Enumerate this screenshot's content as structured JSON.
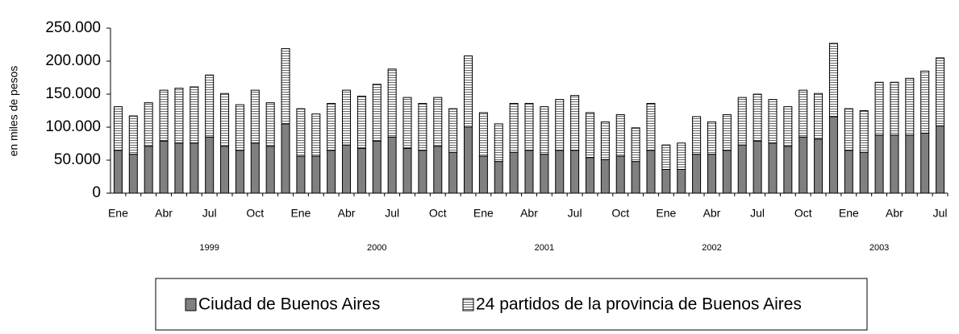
{
  "chart_data": {
    "type": "stacked_bar",
    "y_label": "en  miles de pesos",
    "categories": [
      "Ene",
      null,
      null,
      "Abr",
      null,
      null,
      "Jul",
      null,
      null,
      "Oct",
      null,
      null,
      "Ene",
      null,
      null,
      "Abr",
      null,
      null,
      "Jul",
      null,
      null,
      "Oct",
      null,
      null,
      "Ene",
      null,
      null,
      "Abr",
      null,
      null,
      "Jul",
      null,
      null,
      "Oct",
      null,
      null,
      "Ene",
      null,
      null,
      "Abr",
      null,
      null,
      "Jul",
      null,
      null,
      "Oct",
      null,
      null,
      "Ene",
      null,
      null,
      "Abr",
      null,
      null,
      "Jul"
    ],
    "year_labels": [
      "1999",
      "2000",
      "2001",
      "2002",
      "2003"
    ],
    "series": [
      {
        "name": "Ciudad de Buenos Aires",
        "color": "#808080",
        "values": [
          65000,
          59000,
          71000,
          79000,
          76000,
          76000,
          85000,
          71000,
          65000,
          76000,
          71000,
          105000,
          56000,
          56000,
          65000,
          73000,
          68000,
          79000,
          85000,
          68000,
          65000,
          71000,
          62000,
          100000,
          56000,
          48000,
          62000,
          65000,
          59000,
          65000,
          65000,
          54000,
          51000,
          56000,
          48000,
          65000,
          36000,
          36000,
          59000,
          59000,
          65000,
          73000,
          79000,
          76000,
          71000,
          85000,
          82000,
          116000,
          65000,
          62000,
          88000,
          88000,
          88000,
          91000,
          102000
        ]
      },
      {
        "name": "24 partidos de la provincia de Buenos Aires",
        "color": "#ffffff",
        "hatch": true,
        "values": [
          66000,
          58000,
          66000,
          77000,
          83000,
          85000,
          94000,
          80000,
          69000,
          80000,
          66000,
          114000,
          72000,
          64000,
          71000,
          83000,
          79000,
          86000,
          103000,
          77000,
          71000,
          74000,
          66000,
          108000,
          66000,
          57000,
          74000,
          71000,
          72000,
          77000,
          83000,
          68000,
          57000,
          63000,
          51000,
          71000,
          37000,
          40000,
          57000,
          49000,
          54000,
          72000,
          71000,
          66000,
          60000,
          71000,
          69000,
          111000,
          63000,
          63000,
          80000,
          80000,
          86000,
          94000,
          103000
        ]
      }
    ],
    "ylim": [
      0,
      250000
    ],
    "yticks": [
      {
        "value": 0,
        "label": "0"
      },
      {
        "value": 50000,
        "label": "50.000"
      },
      {
        "value": 100000,
        "label": "100.000"
      },
      {
        "value": 150000,
        "label": "150.000"
      },
      {
        "value": 200000,
        "label": "200.000"
      },
      {
        "value": 250000,
        "label": "250.000"
      }
    ],
    "grid": false
  }
}
